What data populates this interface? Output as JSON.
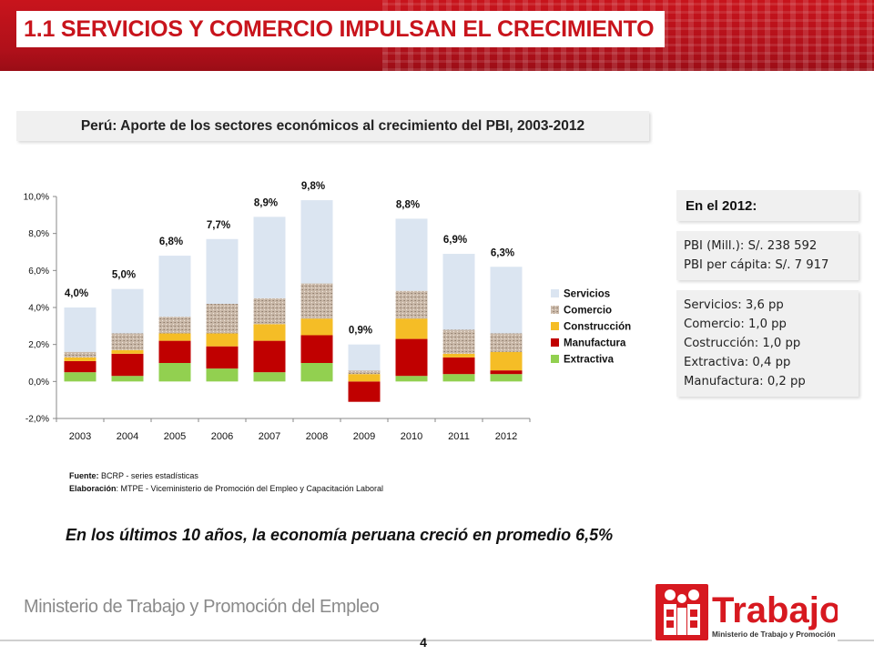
{
  "header": {
    "title": "1.1 SERVICIOS Y COMERCIO IMPULSAN EL CRECIMIENTO"
  },
  "subtitle": "Perú: Aporte de los sectores económicos al crecimiento del PBI, 2003-2012",
  "colors": {
    "servicios": "#dbe5f1",
    "comercio": "#c9b8a8",
    "construccion": "#f5bd26",
    "manufactura": "#c00000",
    "extractiva": "#92d050",
    "brand": "#c8141c"
  },
  "chart_data": {
    "type": "bar",
    "stacked": true,
    "categories": [
      "2003",
      "2004",
      "2005",
      "2006",
      "2007",
      "2008",
      "2009",
      "2010",
      "2011",
      "2012"
    ],
    "series": [
      {
        "name": "Extractiva",
        "values": [
          0.5,
          0.3,
          1.0,
          0.7,
          0.5,
          1.0,
          0.0,
          0.3,
          0.4,
          0.4
        ]
      },
      {
        "name": "Manufactura",
        "values": [
          0.6,
          1.2,
          1.2,
          1.2,
          1.7,
          1.5,
          -1.1,
          2.0,
          0.9,
          0.2
        ]
      },
      {
        "name": "Construcción",
        "values": [
          0.2,
          0.2,
          0.4,
          0.7,
          0.9,
          0.9,
          0.4,
          1.1,
          0.2,
          1.0
        ]
      },
      {
        "name": "Comercio",
        "values": [
          0.3,
          0.9,
          0.9,
          1.6,
          1.4,
          1.9,
          0.2,
          1.5,
          1.3,
          1.0
        ]
      },
      {
        "name": "Servicios",
        "values": [
          2.4,
          2.4,
          3.3,
          3.5,
          4.4,
          4.5,
          1.4,
          3.9,
          4.1,
          3.6
        ]
      }
    ],
    "totals": [
      4.0,
      5.0,
      6.8,
      7.7,
      8.9,
      9.8,
      0.9,
      8.8,
      6.9,
      6.3
    ],
    "total_labels": [
      "4,0%",
      "5,0%",
      "6,8%",
      "7,7%",
      "8,9%",
      "9,8%",
      "0,9%",
      "8,8%",
      "6,9%",
      "6,3%"
    ],
    "ylim": [
      -2.0,
      10.0
    ],
    "yticks": [
      10.0,
      8.0,
      6.0,
      4.0,
      2.0,
      0.0,
      -2.0
    ],
    "ytick_labels": [
      "10,0%",
      "8,0%",
      "6,0%",
      "4,0%",
      "2,0%",
      "0,0%",
      "-2,0%"
    ],
    "legend_order": [
      "Servicios",
      "Comercio",
      "Construcción",
      "Manufactura",
      "Extractiva"
    ],
    "legend_position": "right",
    "grid": false
  },
  "source": {
    "fuente_label": "Fuente:",
    "fuente_text": " BCRP - series estadísticas",
    "elaboracion_label": "Elaboración",
    "elaboracion_text": ":  MTPE - Viceministerio de Promoción del Empleo y Capacitación Laboral"
  },
  "conclusion": "En los últimos 10 años, la economía peruana creció en promedio 6,5%",
  "side": {
    "heading": "En el 2012:",
    "pbi": [
      "PBI (Mill.): S/. 238 592",
      "PBI per cápita: S/. 7 917"
    ],
    "sectors": [
      "Servicios: 3,6 pp",
      "Comercio: 1,0 pp",
      "Costrucción: 1,0 pp",
      "Extractiva: 0,4 pp",
      "Manufactura: 0,2 pp"
    ]
  },
  "footer": {
    "ministry": "Ministerio de Trabajo y Promoción del Empleo",
    "page_number": "4",
    "logo_word": "Trabajo",
    "logo_subtitle": "Ministerio de Trabajo y Promoción del Empleo"
  }
}
